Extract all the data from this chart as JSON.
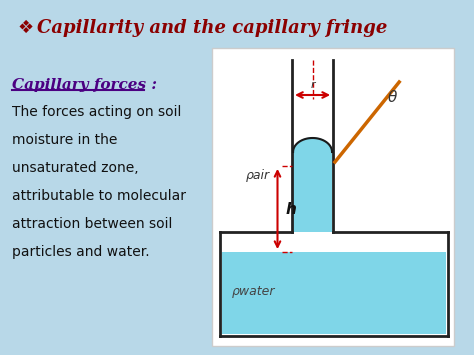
{
  "title": "Capillarity and the capillary fringe",
  "title_color": "#8B0000",
  "bg_color": "#b8d8e8",
  "water_color": "#7fd6e8",
  "subtitle": "Capillary forces :",
  "subtitle_color": "#4B0082",
  "body_lines": [
    "The forces acting on soil",
    "moisture in the",
    "unsaturated zone,",
    "attributable to molecular",
    "attraction between soil",
    "particles and water."
  ],
  "body_color": "#111111",
  "rho_air": "ρair",
  "rho_water": "ρwater",
  "label_h": "h",
  "label_r": "r",
  "label_theta": "θ"
}
